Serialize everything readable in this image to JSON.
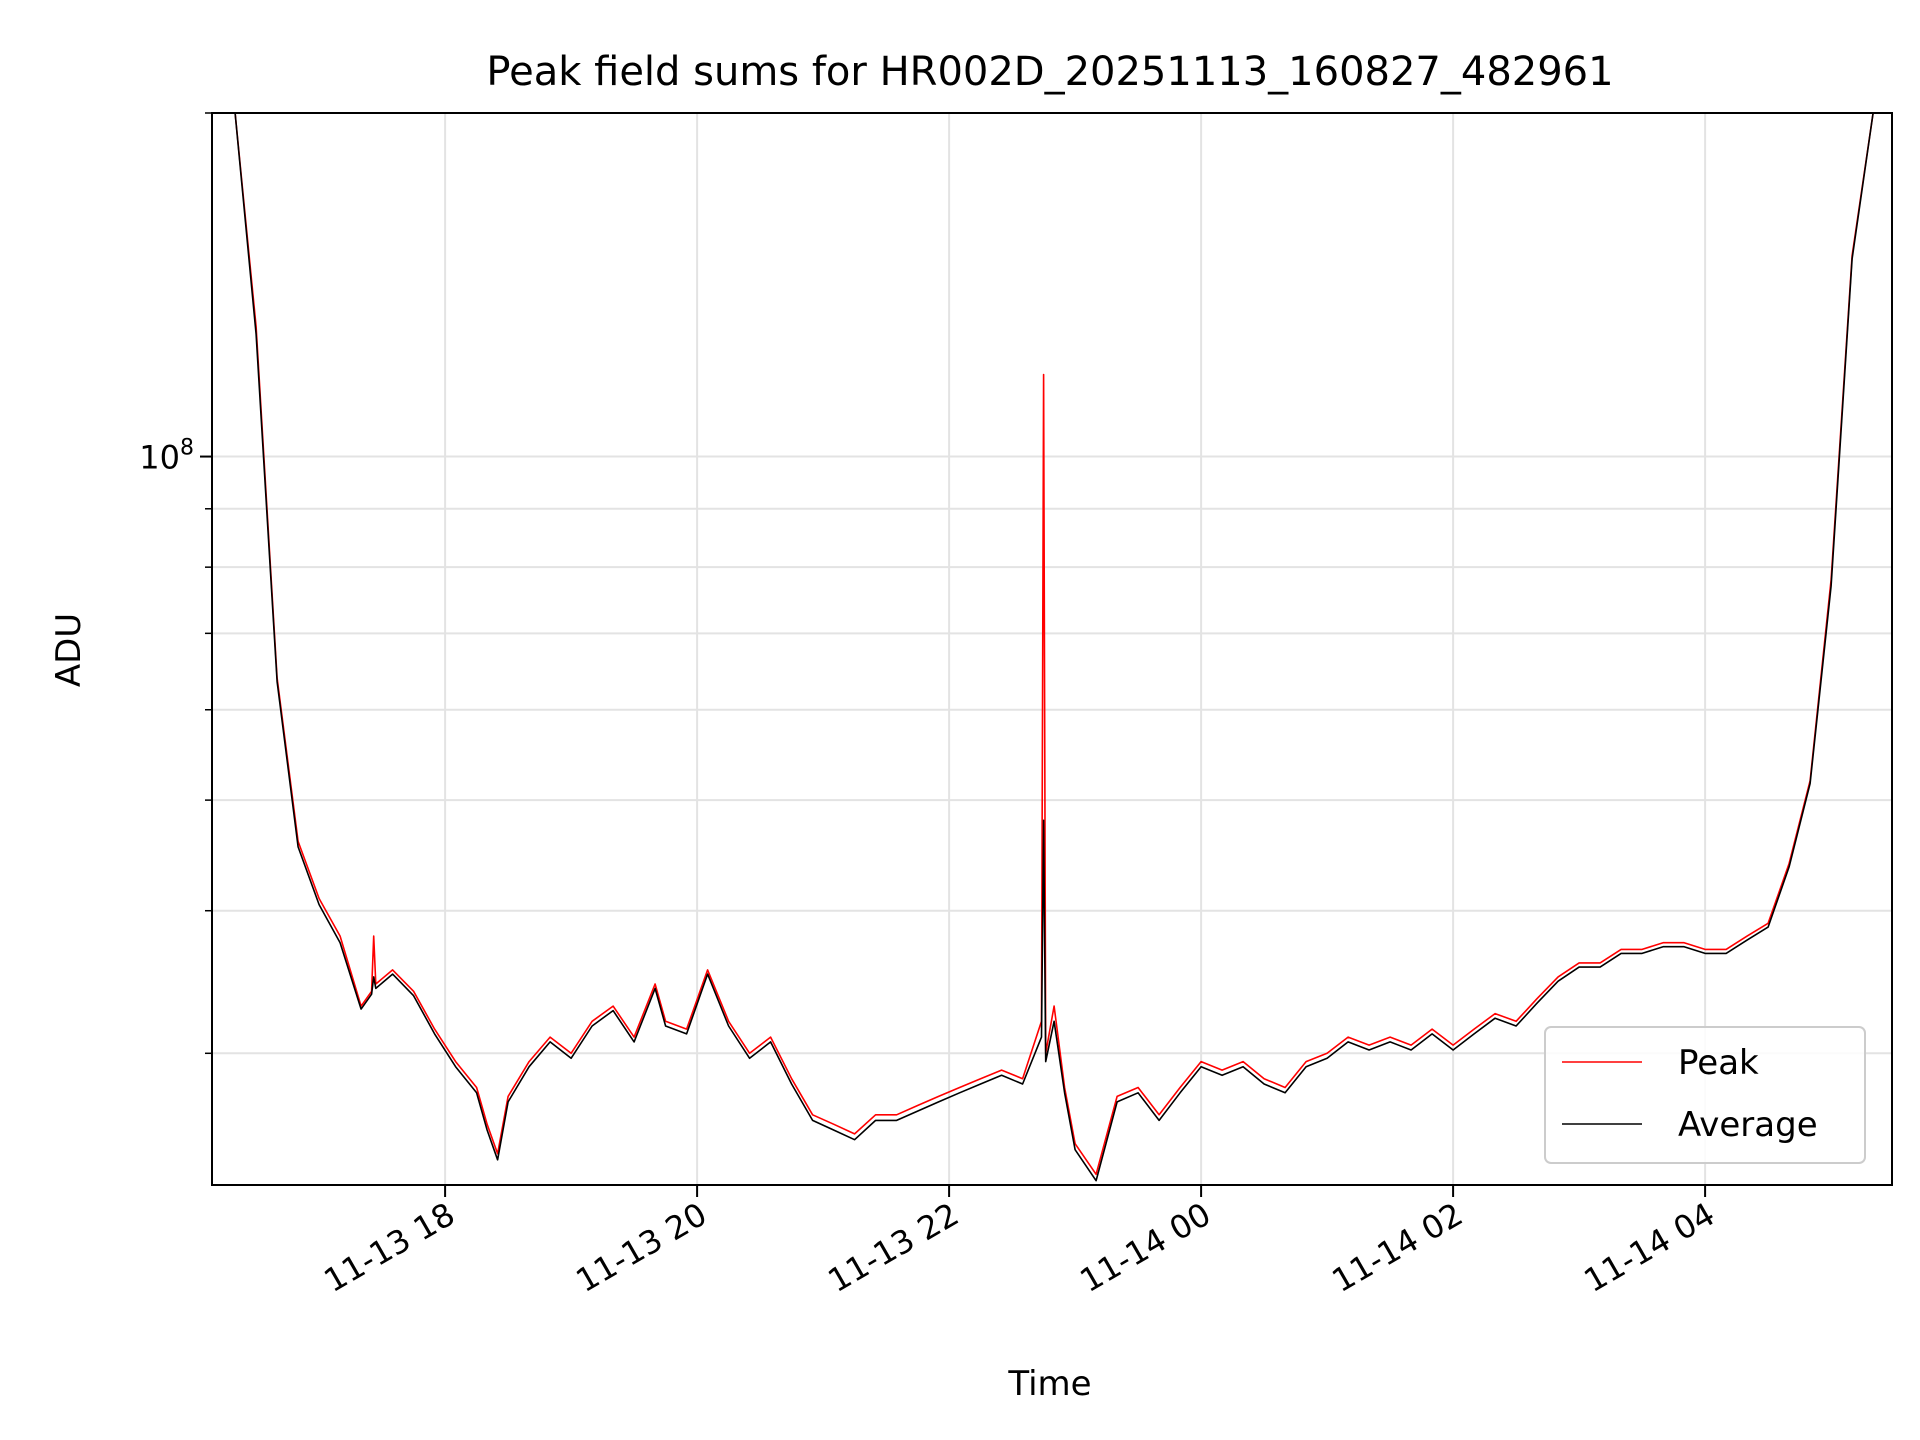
{
  "chart_data": {
    "type": "line",
    "title": "Peak field sums for HR002D_20251113_160827_482961",
    "xlabel": "Time",
    "ylabel": "ADU",
    "xscale": "time",
    "yscale": "log",
    "xlim": [
      "2025-11-13 16:09",
      "2025-11-14 05:29"
    ],
    "ylim": [
      23000000,
      200000000
    ],
    "grid": true,
    "legend_position": "lower right",
    "x_tick_labels": [
      "11-13 18",
      "11-13 20",
      "11-13 22",
      "11-14 00",
      "11-14 02",
      "11-14 04"
    ],
    "x_ticks": [
      "2025-11-13 18:00",
      "2025-11-13 20:00",
      "2025-11-13 22:00",
      "2025-11-14 00:00",
      "2025-11-14 02:00",
      "2025-11-14 04:00"
    ],
    "y_tick_labels": [
      {
        "base": "10",
        "exp": "8",
        "value": 100000000
      }
    ],
    "y_minor_ticks": [
      30000000,
      40000000,
      50000000,
      60000000,
      70000000,
      80000000,
      90000000,
      200000000
    ],
    "series": [
      {
        "name": "Peak",
        "color": "#ff0000",
        "x": [
          "2025-11-13 16:09",
          "2025-11-13 16:20",
          "2025-11-13 16:30",
          "2025-11-13 16:40",
          "2025-11-13 16:50",
          "2025-11-13 17:00",
          "2025-11-13 17:10",
          "2025-11-13 17:20",
          "2025-11-13 17:25",
          "2025-11-13 17:26",
          "2025-11-13 17:27",
          "2025-11-13 17:35",
          "2025-11-13 17:45",
          "2025-11-13 17:55",
          "2025-11-13 18:05",
          "2025-11-13 18:15",
          "2025-11-13 18:20",
          "2025-11-13 18:25",
          "2025-11-13 18:30",
          "2025-11-13 18:40",
          "2025-11-13 18:50",
          "2025-11-13 19:00",
          "2025-11-13 19:10",
          "2025-11-13 19:20",
          "2025-11-13 19:30",
          "2025-11-13 19:40",
          "2025-11-13 19:45",
          "2025-11-13 19:55",
          "2025-11-13 20:05",
          "2025-11-13 20:15",
          "2025-11-13 20:25",
          "2025-11-13 20:35",
          "2025-11-13 20:45",
          "2025-11-13 20:55",
          "2025-11-13 21:05",
          "2025-11-13 21:15",
          "2025-11-13 21:25",
          "2025-11-13 21:35",
          "2025-11-13 21:45",
          "2025-11-13 21:55",
          "2025-11-13 22:05",
          "2025-11-13 22:15",
          "2025-11-13 22:25",
          "2025-11-13 22:35",
          "2025-11-13 22:44",
          "2025-11-13 22:45",
          "2025-11-13 22:46",
          "2025-11-13 22:50",
          "2025-11-13 22:55",
          "2025-11-13 23:00",
          "2025-11-13 23:10",
          "2025-11-13 23:20",
          "2025-11-13 23:30",
          "2025-11-13 23:40",
          "2025-11-13 23:50",
          "2025-11-14 00:00",
          "2025-11-14 00:10",
          "2025-11-14 00:20",
          "2025-11-14 00:30",
          "2025-11-14 00:40",
          "2025-11-14 00:50",
          "2025-11-14 01:00",
          "2025-11-14 01:10",
          "2025-11-14 01:20",
          "2025-11-14 01:30",
          "2025-11-14 01:40",
          "2025-11-14 01:50",
          "2025-11-14 02:00",
          "2025-11-14 02:10",
          "2025-11-14 02:20",
          "2025-11-14 02:30",
          "2025-11-14 02:40",
          "2025-11-14 02:50",
          "2025-11-14 03:00",
          "2025-11-14 03:10",
          "2025-11-14 03:20",
          "2025-11-14 03:30",
          "2025-11-14 03:40",
          "2025-11-14 03:50",
          "2025-11-14 04:00",
          "2025-11-14 04:10",
          "2025-11-14 04:20",
          "2025-11-14 04:30",
          "2025-11-14 04:40",
          "2025-11-14 04:50",
          "2025-11-14 05:00",
          "2025-11-14 05:10",
          "2025-11-14 05:20",
          "2025-11-14 05:29"
        ],
        "y": [
          200000000,
          200000000,
          130000000,
          64000000,
          46000000,
          41000000,
          38000000,
          33000000,
          34000000,
          38000000,
          34500000,
          35500000,
          34000000,
          31500000,
          29500000,
          28000000,
          26000000,
          24500000,
          27500000,
          29500000,
          31000000,
          30000000,
          32000000,
          33000000,
          31000000,
          34500000,
          32000000,
          31500000,
          35500000,
          32000000,
          30000000,
          31000000,
          28500000,
          26500000,
          26000000,
          25500000,
          26500000,
          26500000,
          27000000,
          27500000,
          28000000,
          28500000,
          29000000,
          28500000,
          32000000,
          118000000,
          30000000,
          33000000,
          28000000,
          25000000,
          23500000,
          27500000,
          28000000,
          26500000,
          28000000,
          29500000,
          29000000,
          29500000,
          28500000,
          28000000,
          29500000,
          30000000,
          31000000,
          30500000,
          31000000,
          30500000,
          31500000,
          30500000,
          31500000,
          32500000,
          32000000,
          33500000,
          35000000,
          36000000,
          36000000,
          37000000,
          37000000,
          37500000,
          37500000,
          37000000,
          37000000,
          38000000,
          39000000,
          44000000,
          52000000,
          78000000,
          150000000,
          200000000,
          200000000
        ]
      },
      {
        "name": "Average",
        "color": "#000000",
        "x": [
          "2025-11-13 16:09",
          "2025-11-13 16:20",
          "2025-11-13 16:30",
          "2025-11-13 16:40",
          "2025-11-13 16:50",
          "2025-11-13 17:00",
          "2025-11-13 17:10",
          "2025-11-13 17:20",
          "2025-11-13 17:25",
          "2025-11-13 17:26",
          "2025-11-13 17:27",
          "2025-11-13 17:35",
          "2025-11-13 17:45",
          "2025-11-13 17:55",
          "2025-11-13 18:05",
          "2025-11-13 18:15",
          "2025-11-13 18:20",
          "2025-11-13 18:25",
          "2025-11-13 18:30",
          "2025-11-13 18:40",
          "2025-11-13 18:50",
          "2025-11-13 19:00",
          "2025-11-13 19:10",
          "2025-11-13 19:20",
          "2025-11-13 19:30",
          "2025-11-13 19:40",
          "2025-11-13 19:45",
          "2025-11-13 19:55",
          "2025-11-13 20:05",
          "2025-11-13 20:15",
          "2025-11-13 20:25",
          "2025-11-13 20:35",
          "2025-11-13 20:45",
          "2025-11-13 20:55",
          "2025-11-13 21:05",
          "2025-11-13 21:15",
          "2025-11-13 21:25",
          "2025-11-13 21:35",
          "2025-11-13 21:45",
          "2025-11-13 21:55",
          "2025-11-13 22:05",
          "2025-11-13 22:15",
          "2025-11-13 22:25",
          "2025-11-13 22:35",
          "2025-11-13 22:44",
          "2025-11-13 22:45",
          "2025-11-13 22:46",
          "2025-11-13 22:50",
          "2025-11-13 22:55",
          "2025-11-13 23:00",
          "2025-11-13 23:10",
          "2025-11-13 23:20",
          "2025-11-13 23:30",
          "2025-11-13 23:40",
          "2025-11-13 23:50",
          "2025-11-14 00:00",
          "2025-11-14 00:10",
          "2025-11-14 00:20",
          "2025-11-14 00:30",
          "2025-11-14 00:40",
          "2025-11-14 00:50",
          "2025-11-14 01:00",
          "2025-11-14 01:10",
          "2025-11-14 01:20",
          "2025-11-14 01:30",
          "2025-11-14 01:40",
          "2025-11-14 01:50",
          "2025-11-14 02:00",
          "2025-11-14 02:10",
          "2025-11-14 02:20",
          "2025-11-14 02:30",
          "2025-11-14 02:40",
          "2025-11-14 02:50",
          "2025-11-14 03:00",
          "2025-11-14 03:10",
          "2025-11-14 03:20",
          "2025-11-14 03:30",
          "2025-11-14 03:40",
          "2025-11-14 03:50",
          "2025-11-14 04:00",
          "2025-11-14 04:10",
          "2025-11-14 04:20",
          "2025-11-14 04:30",
          "2025-11-14 04:40",
          "2025-11-14 04:50",
          "2025-11-14 05:00",
          "2025-11-14 05:10",
          "2025-11-14 05:20",
          "2025-11-14 05:29"
        ],
        "y": [
          200000000,
          200000000,
          128000000,
          63500000,
          45500000,
          40500000,
          37500000,
          32800000,
          33800000,
          35000000,
          34200000,
          35200000,
          33700000,
          31200000,
          29200000,
          27700000,
          25700000,
          24200000,
          27200000,
          29200000,
          30700000,
          29700000,
          31700000,
          32700000,
          30700000,
          34200000,
          31700000,
          31200000,
          35200000,
          31700000,
          29700000,
          30700000,
          28200000,
          26200000,
          25700000,
          25200000,
          26200000,
          26200000,
          26700000,
          27200000,
          27700000,
          28200000,
          28700000,
          28200000,
          31000000,
          48000000,
          29500000,
          32000000,
          27700000,
          24700000,
          23200000,
          27200000,
          27700000,
          26200000,
          27700000,
          29200000,
          28700000,
          29200000,
          28200000,
          27700000,
          29200000,
          29700000,
          30700000,
          30200000,
          30700000,
          30200000,
          31200000,
          30200000,
          31200000,
          32200000,
          31700000,
          33200000,
          34700000,
          35700000,
          35700000,
          36700000,
          36700000,
          37200000,
          37200000,
          36700000,
          36700000,
          37700000,
          38700000,
          43700000,
          51700000,
          77000000,
          149000000,
          200000000,
          200000000
        ]
      }
    ]
  }
}
